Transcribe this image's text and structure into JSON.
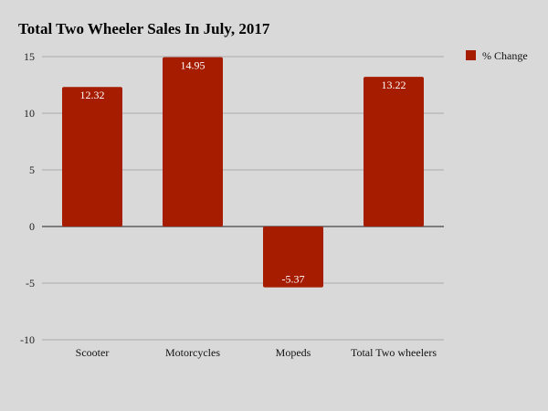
{
  "chart_data": {
    "type": "bar",
    "title": "Total Two Wheeler Sales In July, 2017",
    "categories": [
      "Scooter",
      "Motorcycles",
      "Mopeds",
      "Total Two wheelers"
    ],
    "series": [
      {
        "name": "% Change",
        "values": [
          12.32,
          14.95,
          -5.37,
          13.22
        ],
        "color": "#a51c00"
      }
    ],
    "data_labels": [
      "12.32",
      "14.95",
      "-5.37",
      "13.22"
    ],
    "ylim": [
      -10,
      15
    ],
    "yticks": [
      15,
      10,
      5,
      0,
      -5,
      -10
    ],
    "ytick_labels": [
      "15",
      "10",
      "5",
      "0",
      "-5",
      "-10"
    ],
    "grid": true,
    "legend_position": "top-right",
    "xlabel": "",
    "ylabel": ""
  },
  "colors": {
    "background": "#d9d9d9",
    "bar": "#a51c00",
    "gridline": "#aaaaaa",
    "zero_line": "#444444"
  }
}
